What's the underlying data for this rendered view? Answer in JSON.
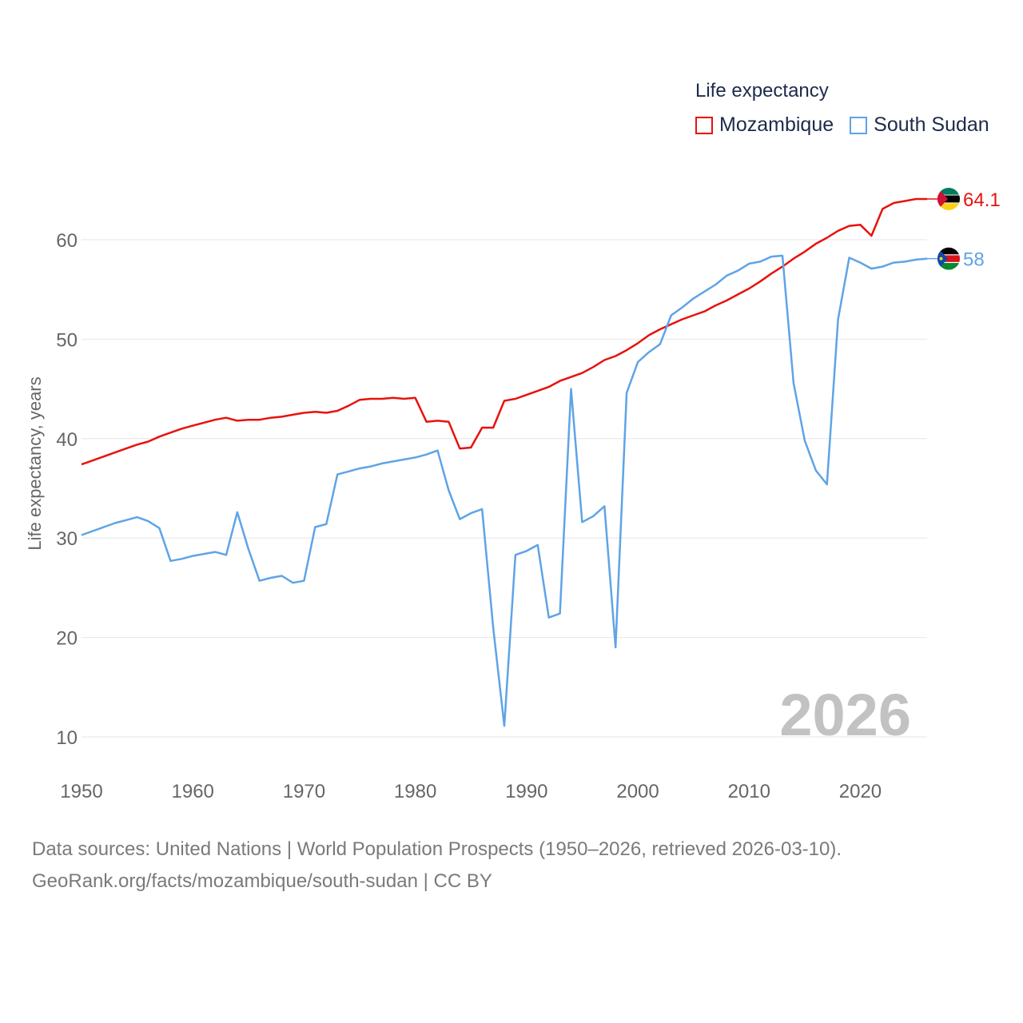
{
  "legend": {
    "title": "Life expectancy",
    "items": [
      {
        "label": "Mozambique",
        "color": "#e8120c"
      },
      {
        "label": "South Sudan",
        "color": "#5ea4e6"
      }
    ]
  },
  "watermark_year": "2026",
  "footer": {
    "line1": "Data sources: United Nations | World Population Prospects (1950–2026, retrieved 2026-03-10).",
    "line2": "GeoRank.org/facts/mozambique/south-sudan | CC BY"
  },
  "chart_data": {
    "type": "line",
    "title": "Life expectancy",
    "xlabel": "",
    "ylabel": "Life expectancy, years",
    "xlim": [
      1950,
      2026
    ],
    "ylim": [
      10,
      65
    ],
    "x_ticks": [
      1950,
      1960,
      1970,
      1980,
      1990,
      2000,
      2010,
      2020
    ],
    "y_ticks": [
      10,
      20,
      30,
      40,
      50,
      60
    ],
    "grid": true,
    "x": [
      1950,
      1951,
      1952,
      1953,
      1954,
      1955,
      1956,
      1957,
      1958,
      1959,
      1960,
      1961,
      1962,
      1963,
      1964,
      1965,
      1966,
      1967,
      1968,
      1969,
      1970,
      1971,
      1972,
      1973,
      1974,
      1975,
      1976,
      1977,
      1978,
      1979,
      1980,
      1981,
      1982,
      1983,
      1984,
      1985,
      1986,
      1987,
      1988,
      1989,
      1990,
      1991,
      1992,
      1993,
      1994,
      1995,
      1996,
      1997,
      1998,
      1999,
      2000,
      2001,
      2002,
      2003,
      2004,
      2005,
      2006,
      2007,
      2008,
      2009,
      2010,
      2011,
      2012,
      2013,
      2014,
      2015,
      2016,
      2017,
      2018,
      2019,
      2020,
      2021,
      2022,
      2023,
      2024,
      2025,
      2026
    ],
    "series": [
      {
        "name": "Mozambique",
        "color": "#e8120c",
        "end_label": "64.1",
        "flag": "mozambique",
        "values": [
          37.4,
          37.8,
          38.2,
          38.6,
          39.0,
          39.4,
          39.7,
          40.2,
          40.6,
          41.0,
          41.3,
          41.6,
          41.9,
          42.1,
          41.8,
          41.9,
          41.9,
          42.1,
          42.2,
          42.4,
          42.6,
          42.7,
          42.6,
          42.8,
          43.3,
          43.9,
          44.0,
          44.0,
          44.1,
          44.0,
          44.1,
          41.7,
          41.8,
          41.7,
          39.0,
          39.1,
          41.1,
          41.1,
          43.8,
          44.0,
          44.4,
          44.8,
          45.2,
          45.8,
          46.2,
          46.6,
          47.2,
          47.9,
          48.3,
          48.9,
          49.6,
          50.4,
          51.0,
          51.5,
          52.0,
          52.4,
          52.8,
          53.4,
          53.9,
          54.5,
          55.1,
          55.8,
          56.6,
          57.3,
          58.1,
          58.8,
          59.6,
          60.2,
          60.9,
          61.4,
          61.5,
          60.4,
          63.1,
          63.7,
          63.9,
          64.1,
          64.1
        ]
      },
      {
        "name": "South Sudan",
        "color": "#5ea4e6",
        "end_label": "58",
        "flag": "south-sudan",
        "values": [
          30.3,
          30.7,
          31.1,
          31.5,
          31.8,
          32.1,
          31.7,
          31.0,
          27.7,
          27.9,
          28.2,
          28.4,
          28.6,
          28.3,
          32.6,
          28.9,
          25.7,
          26.0,
          26.2,
          25.5,
          25.7,
          31.1,
          31.4,
          36.4,
          36.7,
          37.0,
          37.2,
          37.5,
          37.7,
          37.9,
          38.1,
          38.4,
          38.8,
          34.8,
          31.9,
          32.5,
          32.9,
          21.0,
          11.1,
          28.3,
          28.7,
          29.3,
          22.0,
          22.4,
          45.0,
          31.6,
          32.2,
          33.2,
          19.0,
          44.6,
          47.7,
          48.7,
          49.5,
          52.4,
          53.2,
          54.1,
          54.8,
          55.5,
          56.4,
          56.9,
          57.6,
          57.8,
          58.3,
          58.4,
          45.6,
          39.8,
          36.8,
          35.4,
          52.0,
          58.2,
          57.7,
          57.1,
          57.3,
          57.7,
          57.8,
          58.0,
          58.1
        ]
      }
    ]
  }
}
